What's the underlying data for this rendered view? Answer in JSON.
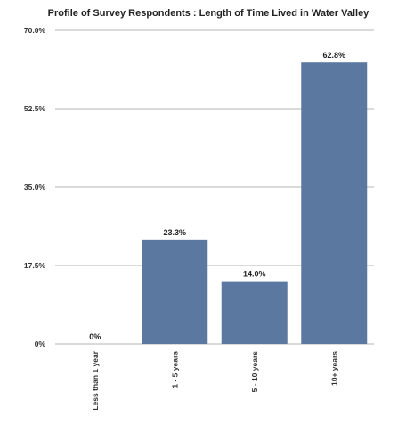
{
  "chart_data": {
    "type": "bar",
    "title": "Profile of Survey Respondents : Length of Time Lived in Water Valley",
    "categories": [
      "Less than 1 year",
      "1 - 5 years",
      "5 - 10 years",
      "10+ years"
    ],
    "values": [
      0,
      23.3,
      14.0,
      62.8
    ],
    "data_labels": [
      "0%",
      "23.3%",
      "14.0%",
      "62.8%"
    ],
    "y_ticks": [
      0,
      17.5,
      35.0,
      52.5,
      70.0
    ],
    "y_tick_labels": [
      "0%",
      "17.5%",
      "35.0%",
      "52.5%",
      "70.0%"
    ],
    "ylim": [
      0,
      70
    ],
    "xlabel": "",
    "ylabel": "",
    "grid": true,
    "bar_color": "#5b79a0",
    "grid_color": "#b5b5b5"
  }
}
